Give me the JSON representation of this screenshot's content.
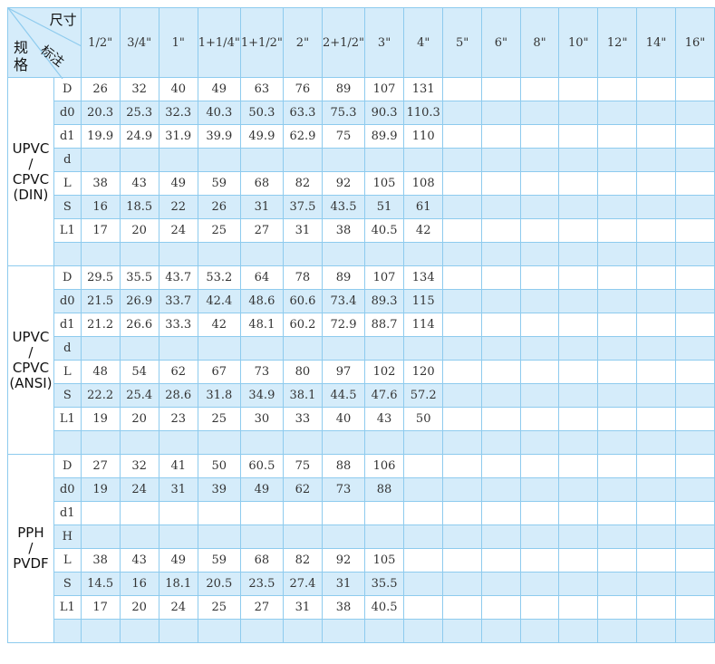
{
  "header": {
    "corner_size": "尺寸",
    "corner_spec": "规格",
    "corner_note": "标注",
    "sizes": [
      "1/2\"",
      "3/4\"",
      "1\"",
      "1+1/4\"",
      "1+1/2\"",
      "2\"",
      "2+1/2\"",
      "3\"",
      "4\"",
      "5\"",
      "6\"",
      "8\"",
      "10\"",
      "12\"",
      "14\"",
      "16\""
    ]
  },
  "groups": [
    {
      "label": "UPVC\n/\nCPVC\n(DIN)",
      "rows": [
        {
          "param": "D",
          "values": [
            "26",
            "32",
            "40",
            "49",
            "63",
            "76",
            "89",
            "107",
            "131"
          ]
        },
        {
          "param": "d0",
          "values": [
            "20.3",
            "25.3",
            "32.3",
            "40.3",
            "50.3",
            "63.3",
            "75.3",
            "90.3",
            "110.3"
          ]
        },
        {
          "param": "d1",
          "values": [
            "19.9",
            "24.9",
            "31.9",
            "39.9",
            "49.9",
            "62.9",
            "75",
            "89.9",
            "110"
          ]
        },
        {
          "param": "d",
          "values": []
        },
        {
          "param": "L",
          "values": [
            "38",
            "43",
            "49",
            "59",
            "68",
            "82",
            "92",
            "105",
            "108"
          ]
        },
        {
          "param": "S",
          "values": [
            "16",
            "18.5",
            "22",
            "26",
            "31",
            "37.5",
            "43.5",
            "51",
            "61"
          ]
        },
        {
          "param": "L1",
          "values": [
            "17",
            "20",
            "24",
            "25",
            "27",
            "31",
            "38",
            "40.5",
            "42"
          ]
        },
        {
          "param": "",
          "values": []
        }
      ]
    },
    {
      "label": "UPVC\n/\nCPVC\n(ANSI)",
      "rows": [
        {
          "param": "D",
          "values": [
            "29.5",
            "35.5",
            "43.7",
            "53.2",
            "64",
            "78",
            "89",
            "107",
            "134"
          ]
        },
        {
          "param": "d0",
          "values": [
            "21.5",
            "26.9",
            "33.7",
            "42.4",
            "48.6",
            "60.6",
            "73.4",
            "89.3",
            "115"
          ]
        },
        {
          "param": "d1",
          "values": [
            "21.2",
            "26.6",
            "33.3",
            "42",
            "48.1",
            "60.2",
            "72.9",
            "88.7",
            "114"
          ]
        },
        {
          "param": "d",
          "values": []
        },
        {
          "param": "L",
          "values": [
            "48",
            "54",
            "62",
            "67",
            "73",
            "80",
            "97",
            "102",
            "120"
          ]
        },
        {
          "param": "S",
          "values": [
            "22.2",
            "25.4",
            "28.6",
            "31.8",
            "34.9",
            "38.1",
            "44.5",
            "47.6",
            "57.2"
          ]
        },
        {
          "param": "L1",
          "values": [
            "19",
            "20",
            "23",
            "25",
            "30",
            "33",
            "40",
            "43",
            "50"
          ]
        },
        {
          "param": "",
          "values": []
        }
      ]
    },
    {
      "label": "PPH\n/\nPVDF",
      "rows": [
        {
          "param": "D",
          "values": [
            "27",
            "32",
            "41",
            "50",
            "60.5",
            "75",
            "88",
            "106"
          ]
        },
        {
          "param": "d0",
          "values": [
            "19",
            "24",
            "31",
            "39",
            "49",
            "62",
            "73",
            "88"
          ]
        },
        {
          "param": "d1",
          "values": []
        },
        {
          "param": "H",
          "values": []
        },
        {
          "param": "L",
          "values": [
            "38",
            "43",
            "49",
            "59",
            "68",
            "82",
            "92",
            "105"
          ]
        },
        {
          "param": "S",
          "values": [
            "14.5",
            "16",
            "18.1",
            "20.5",
            "23.5",
            "27.4",
            "31",
            "35.5"
          ]
        },
        {
          "param": "L1",
          "values": [
            "17",
            "20",
            "24",
            "25",
            "27",
            "31",
            "38",
            "40.5"
          ]
        },
        {
          "param": "",
          "values": []
        }
      ]
    }
  ],
  "colors": {
    "header_bg": "#d5ecfa",
    "border": "#8ecbee",
    "stripe": "#d5ecfa"
  }
}
